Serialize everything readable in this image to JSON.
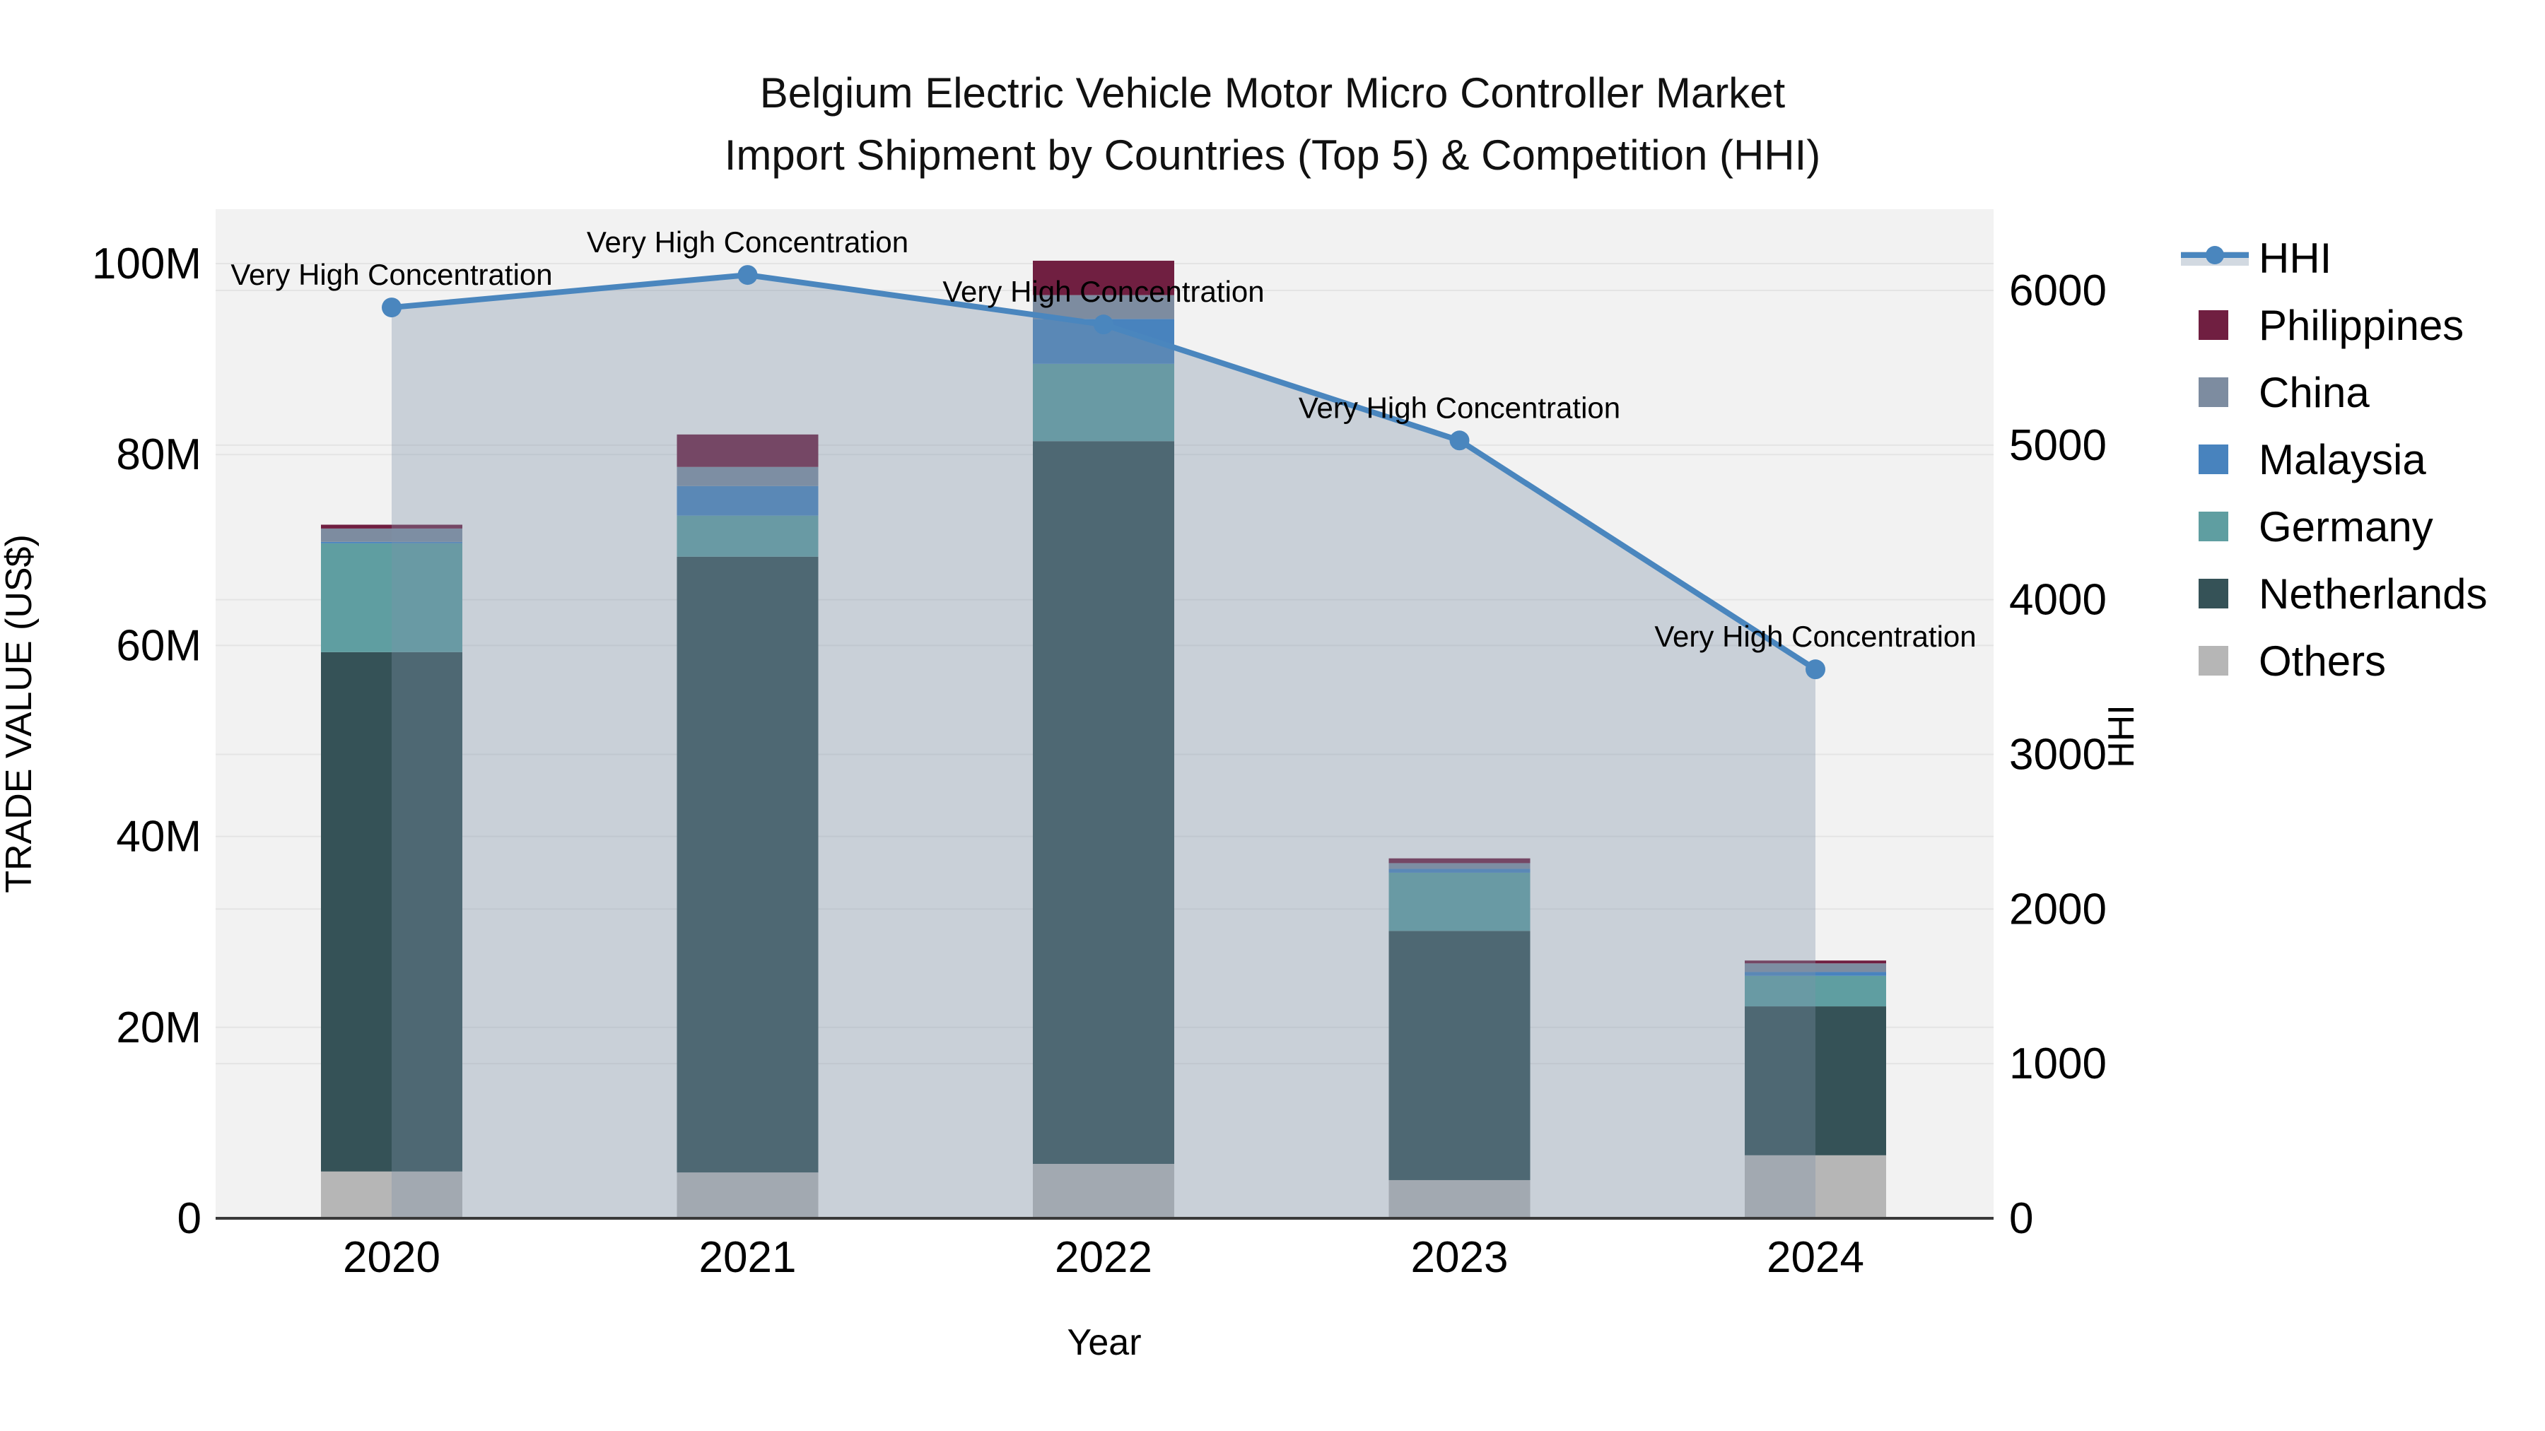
{
  "figure": {
    "title_line1": "Belgium Electric Vehicle Motor Micro Controller Market",
    "title_line2": "Import Shipment by Countries (Top 5) & Competition (HHI)",
    "background": "#ffffff",
    "plot_background": "#f2f2f2",
    "gridline_color": "#e4e4e4",
    "axis_line_color": "#3a3a3a"
  },
  "chart_data": {
    "type": "bar+line",
    "subtype": "stacked-bars-with-dual-axis-line",
    "title": "Belgium Electric Vehicle Motor Micro Controller Market Import Shipment by Countries (Top 5) & Competition (HHI)",
    "xlabel": "Year",
    "ylabel_left": "TRADE VALUE (US$)",
    "ylabel_right": "HHI",
    "categories": [
      "2020",
      "2021",
      "2022",
      "2023",
      "2024"
    ],
    "bar_unit": "million US$",
    "ylim_left_musd": [
      0,
      105
    ],
    "ylim_right": [
      0,
      6510
    ],
    "yticks_left_labels": [
      "0",
      "20M",
      "40M",
      "60M",
      "80M",
      "100M"
    ],
    "yticks_left_values": [
      0,
      20,
      40,
      60,
      80,
      100
    ],
    "yticks_right_labels": [
      "0",
      "1000",
      "2000",
      "3000",
      "4000",
      "5000",
      "6000"
    ],
    "yticks_right_values": [
      0,
      1000,
      2000,
      3000,
      4000,
      5000,
      6000
    ],
    "grid": true,
    "series": [
      {
        "name": "Philippines",
        "color": "#701F41",
        "values": [
          0.4,
          3.4,
          3.6,
          0.5,
          0.3
        ]
      },
      {
        "name": "China",
        "color": "#7D8CA0",
        "values": [
          1.4,
          2.0,
          2.5,
          0.6,
          0.9
        ]
      },
      {
        "name": "Malaysia",
        "color": "#4883BE",
        "values": [
          0.15,
          3.1,
          4.7,
          0.4,
          0.4
        ]
      },
      {
        "name": "Germany",
        "color": "#5F9EA1",
        "values": [
          11.4,
          4.3,
          8.1,
          6.1,
          3.2
        ]
      },
      {
        "name": "Netherlands",
        "color": "#355257",
        "values": [
          54.4,
          64.5,
          75.7,
          26.1,
          15.6
        ]
      },
      {
        "name": "Others",
        "color": "#B6B6B6",
        "values": [
          4.9,
          4.8,
          5.7,
          4.0,
          6.6
        ]
      }
    ],
    "stack_order_bottom_to_top": [
      "Others",
      "Netherlands",
      "Germany",
      "Malaysia",
      "China",
      "Philippines"
    ],
    "bar_totals_musd": [
      72.7,
      82.1,
      100.3,
      37.7,
      27.0
    ],
    "line_series": {
      "name": "HHI",
      "color": "#4A86BE",
      "marker": "circle",
      "area_fill": "rgba(125,145,170,0.35)",
      "values": [
        5890,
        6100,
        5780,
        5030,
        3550
      ]
    },
    "annotation_texts": [
      "Very High Concentration",
      "Very High Concentration",
      "Very High Concentration",
      "Very High Concentration",
      "Very High Concentration"
    ],
    "legend": {
      "position": "right-outside",
      "entries": [
        {
          "label": "HHI",
          "type": "line",
          "color": "#4A86BE"
        },
        {
          "label": "Philippines",
          "type": "swatch",
          "color": "#701F41"
        },
        {
          "label": "China",
          "type": "swatch",
          "color": "#7D8CA0"
        },
        {
          "label": "Malaysia",
          "type": "swatch",
          "color": "#4883BE"
        },
        {
          "label": "Germany",
          "type": "swatch",
          "color": "#5F9EA1"
        },
        {
          "label": "Netherlands",
          "type": "swatch",
          "color": "#355257"
        },
        {
          "label": "Others",
          "type": "swatch",
          "color": "#B6B6B6"
        }
      ]
    }
  }
}
